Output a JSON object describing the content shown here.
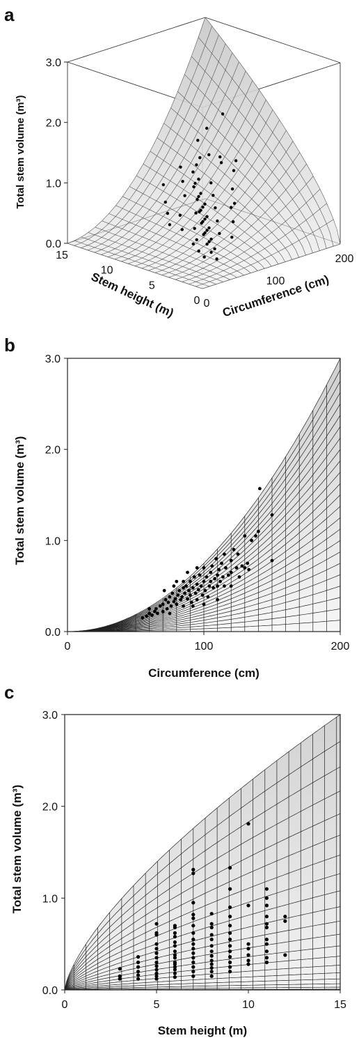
{
  "panels": {
    "a": {
      "letter": "a"
    },
    "b": {
      "letter": "b"
    },
    "c": {
      "letter": "c"
    }
  },
  "chart_data": [
    {
      "type": "scatter",
      "title": "",
      "panel": "a",
      "xlabel": "Stem height (m)",
      "ylabel": "Total stem volume (m³)",
      "zlabel": "Circumference (cm)",
      "height_ticks": [
        "0",
        "5",
        "10",
        "15"
      ],
      "circ_ticks": [
        "0",
        "100",
        "200"
      ],
      "vol_ticks": [
        "0.0",
        "1.0",
        "2.0",
        "3.0"
      ],
      "xlim": [
        0,
        15
      ],
      "circ_lim": [
        0,
        200
      ],
      "ylim": [
        0,
        3
      ],
      "surface": "volume = f(circumference, height) mesh",
      "points_note": "observed trees (circumference cm, height m, volume m³)",
      "points": [
        [
          60,
          3,
          0.12
        ],
        [
          65,
          4,
          0.16
        ],
        [
          70,
          4,
          0.2
        ],
        [
          72,
          5,
          0.22
        ],
        [
          75,
          5,
          0.25
        ],
        [
          78,
          5,
          0.28
        ],
        [
          80,
          6,
          0.3
        ],
        [
          82,
          6,
          0.32
        ],
        [
          85,
          6,
          0.35
        ],
        [
          88,
          6,
          0.38
        ],
        [
          90,
          7,
          0.4
        ],
        [
          92,
          7,
          0.42
        ],
        [
          95,
          7,
          0.45
        ],
        [
          98,
          7,
          0.48
        ],
        [
          100,
          8,
          0.5
        ],
        [
          102,
          8,
          0.52
        ],
        [
          105,
          8,
          0.56
        ],
        [
          108,
          8,
          0.6
        ],
        [
          110,
          9,
          0.62
        ],
        [
          112,
          9,
          0.66
        ],
        [
          115,
          9,
          0.7
        ],
        [
          118,
          10,
          0.75
        ],
        [
          120,
          10,
          0.8
        ],
        [
          125,
          10,
          0.85
        ],
        [
          130,
          11,
          0.9
        ],
        [
          135,
          11,
          1.0
        ],
        [
          140,
          11,
          1.1
        ],
        [
          150,
          12,
          1.3
        ],
        [
          80,
          7,
          0.35
        ],
        [
          90,
          5,
          0.33
        ],
        [
          95,
          8,
          0.5
        ],
        [
          100,
          6,
          0.45
        ],
        [
          110,
          7,
          0.58
        ],
        [
          120,
          8,
          0.7
        ],
        [
          130,
          9,
          0.82
        ],
        [
          70,
          6,
          0.25
        ],
        [
          85,
          9,
          0.45
        ],
        [
          105,
          10,
          0.65
        ],
        [
          115,
          11,
          0.8
        ],
        [
          125,
          12,
          0.95
        ],
        [
          140,
          10,
          1.2
        ],
        [
          145,
          9,
          1.1
        ],
        [
          150,
          8,
          1.0
        ],
        [
          75,
          8,
          0.3
        ],
        [
          65,
          6,
          0.2
        ],
        [
          60,
          5,
          0.15
        ],
        [
          55,
          4,
          0.12
        ],
        [
          100,
          12,
          0.75
        ],
        [
          120,
          6,
          0.6
        ],
        [
          135,
          7,
          0.8
        ],
        [
          160,
          10,
          1.8
        ],
        [
          90,
          11,
          0.55
        ],
        [
          95,
          4,
          0.3
        ],
        [
          110,
          5,
          0.45
        ],
        [
          125,
          6,
          0.65
        ],
        [
          140,
          7,
          1.25
        ],
        [
          130,
          8,
          1.3
        ],
        [
          80,
          10,
          0.45
        ],
        [
          70,
          9,
          0.35
        ],
        [
          150,
          11,
          1.55
        ]
      ]
    },
    {
      "type": "scatter",
      "title": "",
      "panel": "b",
      "xlabel": "Circumference (cm)",
      "ylabel": "Total stem volume (m³)",
      "x_ticks": [
        "0",
        "100",
        "200"
      ],
      "y_ticks": [
        "0.0",
        "1.0",
        "2.0",
        "3.0"
      ],
      "xlim": [
        0,
        200
      ],
      "ylim": [
        0,
        3
      ],
      "points": [
        [
          55,
          0.15
        ],
        [
          58,
          0.17
        ],
        [
          60,
          0.2
        ],
        [
          62,
          0.18
        ],
        [
          64,
          0.22
        ],
        [
          65,
          0.25
        ],
        [
          66,
          0.2
        ],
        [
          68,
          0.28
        ],
        [
          70,
          0.3
        ],
        [
          70,
          0.22
        ],
        [
          71,
          0.45
        ],
        [
          72,
          0.35
        ],
        [
          73,
          0.25
        ],
        [
          74,
          0.32
        ],
        [
          75,
          0.38
        ],
        [
          76,
          0.28
        ],
        [
          77,
          0.42
        ],
        [
          78,
          0.33
        ],
        [
          79,
          0.36
        ],
        [
          80,
          0.55
        ],
        [
          80,
          0.3
        ],
        [
          81,
          0.4
        ],
        [
          82,
          0.45
        ],
        [
          83,
          0.35
        ],
        [
          84,
          0.38
        ],
        [
          85,
          0.48
        ],
        [
          85,
          0.28
        ],
        [
          86,
          0.42
        ],
        [
          87,
          0.5
        ],
        [
          88,
          0.36
        ],
        [
          89,
          0.45
        ],
        [
          90,
          0.55
        ],
        [
          90,
          0.4
        ],
        [
          91,
          0.32
        ],
        [
          92,
          0.48
        ],
        [
          93,
          0.6
        ],
        [
          94,
          0.42
        ],
        [
          95,
          0.52
        ],
        [
          95,
          0.35
        ],
        [
          96,
          0.46
        ],
        [
          97,
          0.62
        ],
        [
          98,
          0.5
        ],
        [
          99,
          0.4
        ],
        [
          100,
          0.55
        ],
        [
          100,
          0.7
        ],
        [
          101,
          0.45
        ],
        [
          102,
          0.6
        ],
        [
          103,
          0.38
        ],
        [
          104,
          0.5
        ],
        [
          105,
          0.65
        ],
        [
          105,
          0.55
        ],
        [
          106,
          0.72
        ],
        [
          107,
          0.48
        ],
        [
          108,
          0.58
        ],
        [
          109,
          0.8
        ],
        [
          110,
          0.62
        ],
        [
          110,
          0.5
        ],
        [
          111,
          0.68
        ],
        [
          112,
          0.55
        ],
        [
          113,
          0.75
        ],
        [
          114,
          0.6
        ],
        [
          115,
          0.85
        ],
        [
          115,
          0.5
        ],
        [
          116,
          0.7
        ],
        [
          118,
          0.62
        ],
        [
          120,
          0.78
        ],
        [
          120,
          0.65
        ],
        [
          122,
          0.9
        ],
        [
          124,
          0.7
        ],
        [
          125,
          0.85
        ],
        [
          126,
          0.6
        ],
        [
          128,
          0.72
        ],
        [
          130,
          0.7
        ],
        [
          130,
          1.05
        ],
        [
          132,
          0.75
        ],
        [
          133,
          0.68
        ],
        [
          135,
          1.0
        ],
        [
          138,
          1.05
        ],
        [
          140,
          1.1
        ],
        [
          141,
          1.57
        ],
        [
          150,
          1.28
        ],
        [
          150,
          0.78
        ],
        [
          95,
          0.7
        ],
        [
          88,
          0.65
        ],
        [
          85,
          0.55
        ],
        [
          78,
          0.5
        ],
        [
          60,
          0.25
        ],
        [
          100,
          0.3
        ],
        [
          110,
          0.35
        ],
        [
          120,
          0.5
        ],
        [
          92,
          0.28
        ],
        [
          75,
          0.2
        ]
      ]
    },
    {
      "type": "scatter",
      "title": "",
      "panel": "c",
      "xlabel": "Stem height (m)",
      "ylabel": "Total stem volume (m³)",
      "x_ticks": [
        "0",
        "5",
        "10",
        "15"
      ],
      "y_ticks": [
        "0.0",
        "1.0",
        "2.0",
        "3.0"
      ],
      "xlim": [
        0,
        15
      ],
      "ylim": [
        0,
        3
      ],
      "points": [
        [
          3,
          0.12
        ],
        [
          3,
          0.15
        ],
        [
          3,
          0.23
        ],
        [
          4,
          0.12
        ],
        [
          4,
          0.16
        ],
        [
          4,
          0.2
        ],
        [
          4,
          0.25
        ],
        [
          4,
          0.3
        ],
        [
          4,
          0.36
        ],
        [
          5,
          0.12
        ],
        [
          5,
          0.15
        ],
        [
          5,
          0.18
        ],
        [
          5,
          0.22
        ],
        [
          5,
          0.26
        ],
        [
          5,
          0.3
        ],
        [
          5,
          0.35
        ],
        [
          5,
          0.4
        ],
        [
          5,
          0.45
        ],
        [
          5,
          0.5
        ],
        [
          5,
          0.6
        ],
        [
          5,
          0.62
        ],
        [
          5,
          0.72
        ],
        [
          6,
          0.14
        ],
        [
          6,
          0.18
        ],
        [
          6,
          0.22
        ],
        [
          6,
          0.25
        ],
        [
          6,
          0.28
        ],
        [
          6,
          0.3
        ],
        [
          6,
          0.35
        ],
        [
          6,
          0.38
        ],
        [
          6,
          0.42
        ],
        [
          6,
          0.48
        ],
        [
          6,
          0.52
        ],
        [
          6,
          0.58
        ],
        [
          6,
          0.62
        ],
        [
          6,
          0.68
        ],
        [
          6,
          0.7
        ],
        [
          7,
          0.15
        ],
        [
          7,
          0.2
        ],
        [
          7,
          0.25
        ],
        [
          7,
          0.3
        ],
        [
          7,
          0.35
        ],
        [
          7,
          0.4
        ],
        [
          7,
          0.45
        ],
        [
          7,
          0.5
        ],
        [
          7,
          0.55
        ],
        [
          7,
          0.62
        ],
        [
          7,
          0.7
        ],
        [
          7,
          0.78
        ],
        [
          7,
          0.82
        ],
        [
          7,
          0.95
        ],
        [
          7,
          1.27
        ],
        [
          7,
          1.31
        ],
        [
          8,
          0.15
        ],
        [
          8,
          0.2
        ],
        [
          8,
          0.24
        ],
        [
          8,
          0.28
        ],
        [
          8,
          0.32
        ],
        [
          8,
          0.37
        ],
        [
          8,
          0.42
        ],
        [
          8,
          0.48
        ],
        [
          8,
          0.55
        ],
        [
          8,
          0.6
        ],
        [
          8,
          0.68
        ],
        [
          8,
          0.72
        ],
        [
          8,
          0.83
        ],
        [
          9,
          0.2
        ],
        [
          9,
          0.25
        ],
        [
          9,
          0.3
        ],
        [
          9,
          0.36
        ],
        [
          9,
          0.42
        ],
        [
          9,
          0.48
        ],
        [
          9,
          0.55
        ],
        [
          9,
          0.62
        ],
        [
          9,
          0.7
        ],
        [
          9,
          0.8
        ],
        [
          9,
          0.9
        ],
        [
          9,
          1.1
        ],
        [
          9,
          1.33
        ],
        [
          10,
          0.28
        ],
        [
          10,
          0.32
        ],
        [
          10,
          0.38
        ],
        [
          10,
          0.45
        ],
        [
          10,
          0.5
        ],
        [
          10,
          0.92
        ],
        [
          10,
          1.81
        ],
        [
          11,
          0.3
        ],
        [
          11,
          0.35
        ],
        [
          11,
          0.42
        ],
        [
          11,
          0.5
        ],
        [
          11,
          0.55
        ],
        [
          11,
          0.68
        ],
        [
          11,
          0.72
        ],
        [
          11,
          0.8
        ],
        [
          11,
          0.92
        ],
        [
          11,
          1.0
        ],
        [
          11,
          1.1
        ],
        [
          12,
          0.38
        ],
        [
          12,
          0.75
        ],
        [
          12,
          0.8
        ]
      ]
    }
  ]
}
